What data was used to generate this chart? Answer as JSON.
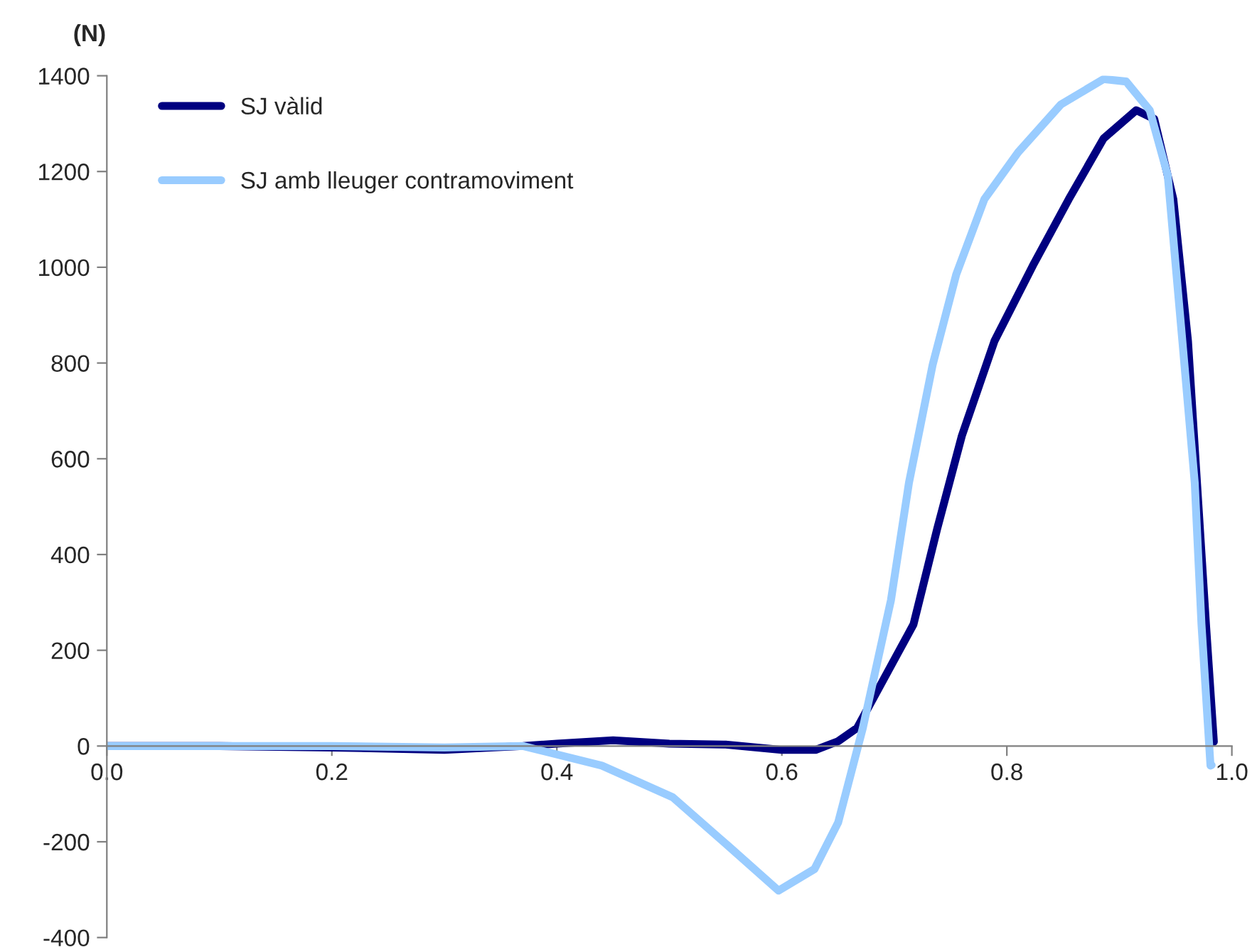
{
  "chart_data": {
    "type": "line",
    "ylabel": "(N)",
    "xlim": [
      0.0,
      1.0
    ],
    "ylim": [
      -400,
      1400
    ],
    "xticks": [
      {
        "value": 0.0,
        "label": "0.0"
      },
      {
        "value": 0.2,
        "label": "0.2"
      },
      {
        "value": 0.4,
        "label": "0.4"
      },
      {
        "value": 0.6,
        "label": "0.6"
      },
      {
        "value": 0.8,
        "label": "0.8"
      },
      {
        "value": 1.0,
        "label": "1.0"
      }
    ],
    "yticks": [
      -400,
      -200,
      0,
      200,
      400,
      600,
      800,
      1000,
      1200,
      1400
    ],
    "grid": false,
    "legend": "top left",
    "marker": "none",
    "line_style": "solid",
    "series": [
      {
        "name": "SJ vàlid",
        "color": "#000080",
        "x": [
          0.0,
          0.1,
          0.2,
          0.3,
          0.37,
          0.4,
          0.45,
          0.5,
          0.55,
          0.6,
          0.63,
          0.65,
          0.667,
          0.717,
          0.738,
          0.76,
          0.789,
          0.823,
          0.855,
          0.886,
          0.915,
          0.931,
          0.948,
          0.961,
          0.969,
          0.977,
          0.984
        ],
        "values": [
          0,
          0,
          -3,
          -8,
          0,
          5,
          12,
          5,
          3,
          -8,
          -8,
          10,
          38,
          254,
          453,
          648,
          846,
          1003,
          1142,
          1269,
          1328,
          1310,
          1142,
          846,
          550,
          254,
          9
        ]
      },
      {
        "name": "SJ amb lleuger contramoviment",
        "color": "#99ccff",
        "x": [
          0.0,
          0.1,
          0.2,
          0.3,
          0.37,
          0.44,
          0.503,
          0.553,
          0.597,
          0.629,
          0.65,
          0.672,
          0.697,
          0.713,
          0.734,
          0.755,
          0.78,
          0.81,
          0.848,
          0.886,
          0.906,
          0.927,
          0.943,
          0.956,
          0.967,
          0.973,
          0.981,
          0.982
        ],
        "values": [
          0,
          0,
          0,
          -3,
          0,
          -41,
          -107,
          -210,
          -302,
          -257,
          -160,
          38,
          305,
          550,
          796,
          985,
          1142,
          1240,
          1340,
          1393,
          1388,
          1328,
          1192,
          846,
          550,
          254,
          -41,
          -40
        ]
      }
    ]
  }
}
